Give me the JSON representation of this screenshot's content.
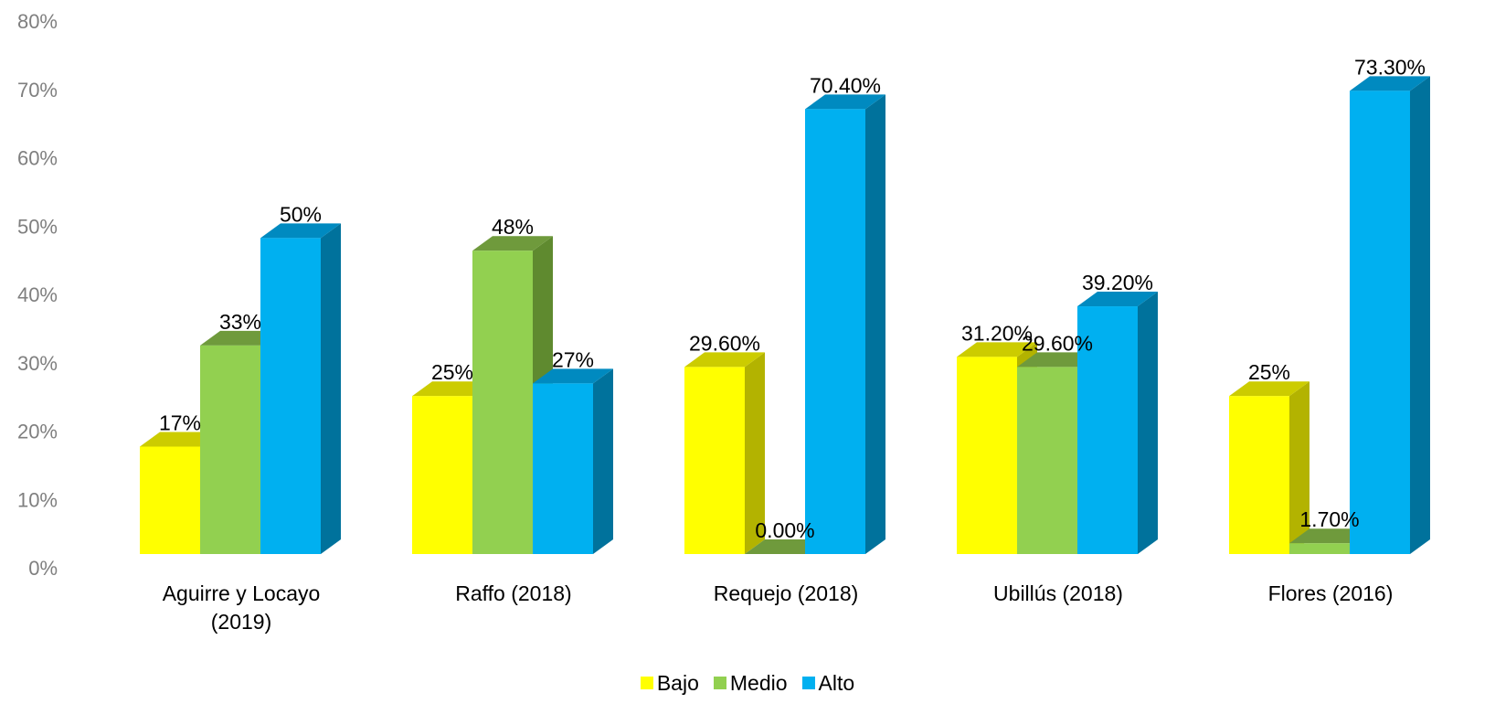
{
  "chart_data": {
    "type": "bar",
    "categories": [
      "Aguirre y Locayo (2019)",
      "Raffo (2018)",
      "Requejo (2018)",
      "Ubillús (2018)",
      "Flores (2016)"
    ],
    "category_lines": [
      [
        "Aguirre y Locayo",
        "(2019)"
      ],
      [
        "Raffo (2018)"
      ],
      [
        "Requejo (2018)"
      ],
      [
        "Ubillús (2018)"
      ],
      [
        "Flores (2016)"
      ]
    ],
    "series": [
      {
        "name": "Bajo",
        "values": [
          17,
          25,
          29.6,
          31.2,
          25
        ],
        "labels": [
          "17%",
          "25%",
          "29.60%",
          "31.20%",
          "25%"
        ],
        "color": "#ffff00",
        "side_color": "#b3b300",
        "top_color": "#cccc00"
      },
      {
        "name": "Medio",
        "values": [
          33,
          48,
          0,
          29.6,
          1.7
        ],
        "labels": [
          "33%",
          "48%",
          "0.00%",
          "29.60%",
          "1.70%"
        ],
        "color": "#92d050",
        "side_color": "#5f8a2f",
        "top_color": "#6f9a3c"
      },
      {
        "name": "Alto",
        "values": [
          50,
          27,
          70.4,
          39.2,
          73.3
        ],
        "labels": [
          "50%",
          "27%",
          "70.40%",
          "39.20%",
          "73.30%"
        ],
        "color": "#00b0f0",
        "side_color": "#00729c",
        "top_color": "#008ac0"
      }
    ],
    "yticks": [
      "0%",
      "10%",
      "20%",
      "30%",
      "40%",
      "50%",
      "60%",
      "70%",
      "80%"
    ],
    "ylim": [
      0,
      80
    ],
    "legend_position": "bottom-center",
    "three_d": true,
    "grid": false
  }
}
